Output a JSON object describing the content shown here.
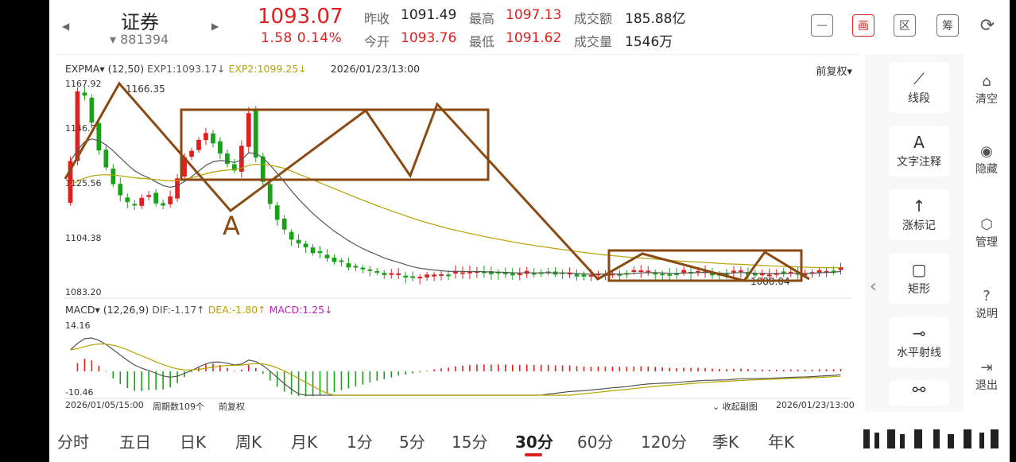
{
  "header": {
    "prev_arrow": "◀",
    "next_arrow": "▶",
    "title": "证券",
    "code": "▾ 881394",
    "price": "1093.07",
    "change": "1.58  0.14%",
    "quotes": [
      {
        "label": "昨收",
        "value": "1091.49",
        "red": false
      },
      {
        "label": "今开",
        "value": "1093.76",
        "red": true
      },
      {
        "label": "最高",
        "value": "1097.13",
        "red": true
      },
      {
        "label": "最低",
        "value": "1091.62",
        "red": true
      },
      {
        "label": "成交额",
        "value": "185.88亿",
        "red": false
      },
      {
        "label": "成交量",
        "value": "1546万",
        "red": false
      }
    ],
    "tools": [
      {
        "name": "minimize",
        "glyph": "—",
        "active": false
      },
      {
        "name": "draw",
        "glyph": "画",
        "active": true
      },
      {
        "name": "range",
        "glyph": "区",
        "active": false
      },
      {
        "name": "filter",
        "glyph": "筹",
        "active": false
      },
      {
        "name": "rotate",
        "glyph": "⟳",
        "active": false
      }
    ]
  },
  "chart": {
    "main_indicator": "EXPMA▾",
    "main_params": "(12,50)",
    "exp1": "EXP1:1093.17↓",
    "exp2": "EXP2:1099.25↓",
    "date": "2026/01/23/13:00",
    "fuquan": "前复权▾",
    "y_labels": [
      "1167.92",
      "1146.74",
      "1125.56",
      "1104.38",
      "1083.20"
    ],
    "high_mark": "1166.35",
    "low_mark": "1088.04",
    "annotation_letter": "A",
    "sub_indicator": "MACD▾",
    "sub_params": "(12,26,9)",
    "dif": "DIF:-1.17↑",
    "dea": "DEA:-1.80↑",
    "macd": "MACD:1.25↓",
    "sub_top": "14.16",
    "sub_bottom": "-10.46",
    "footer_start": "2026/01/05/15:00",
    "footer_period": "周期数109个",
    "footer_fuquan": "前复权",
    "footer_collapse": "⌄ 收起副图",
    "footer_end": "2026/01/23/13:00",
    "colors": {
      "up": "#e02020",
      "down": "#1aa11a",
      "exp1": "#555555",
      "exp2": "#b8a200",
      "draw": "#8a4a12"
    }
  },
  "draw_tools": [
    {
      "icon": "⟋",
      "label": "线段"
    },
    {
      "icon": "A",
      "label": "文字注释"
    },
    {
      "icon": "↑",
      "label": "涨标记"
    },
    {
      "icon": "▢",
      "label": "矩形"
    },
    {
      "icon": "⊸",
      "label": "水平射线"
    },
    {
      "icon": "⚯",
      "label": ""
    }
  ],
  "right_tools": [
    {
      "icon": "⌂",
      "label": "清空"
    },
    {
      "icon": "◉",
      "label": "隐藏"
    },
    {
      "icon": "⬡",
      "label": "管理"
    },
    {
      "icon": "?",
      "label": "说明"
    },
    {
      "icon": "⇥",
      "label": "退出"
    }
  ],
  "tabs": [
    "分时",
    "五日",
    "日K",
    "周K",
    "月K",
    "1分",
    "5分",
    "15分",
    "30分",
    "60分",
    "120分",
    "季K",
    "年K"
  ],
  "active_tab": "30分"
}
